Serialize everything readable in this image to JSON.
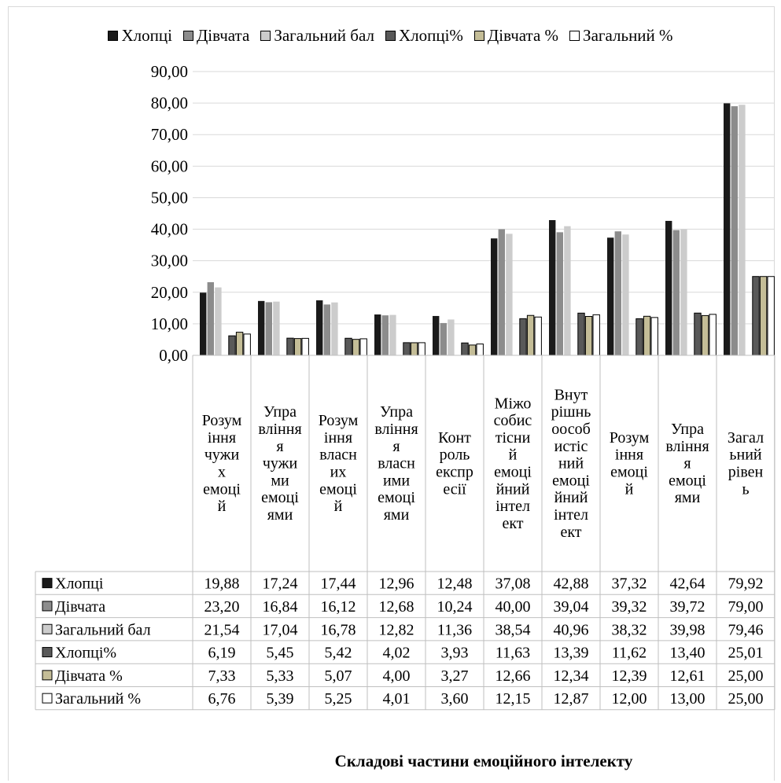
{
  "chart_data": {
    "type": "bar",
    "title": "",
    "xlabel": "Складові частини емоційного інтелекту",
    "ylabel": "",
    "ylim": [
      0,
      90
    ],
    "yticks": [
      "0,00",
      "10,00",
      "20,00",
      "30,00",
      "40,00",
      "50,00",
      "60,00",
      "70,00",
      "80,00",
      "90,00"
    ],
    "grid": true,
    "legend_position": "top",
    "categories": [
      [
        "Розум",
        "іння",
        "чужи",
        "х",
        "емоці",
        "й"
      ],
      [
        "Упра",
        "вління",
        "я",
        "чужи",
        "ми",
        "емоці",
        "ями"
      ],
      [
        "Розум",
        "іння",
        "власн",
        "их",
        "емоці",
        "й"
      ],
      [
        "Упра",
        "вління",
        "я",
        "власн",
        "ими",
        "емоці",
        "ями"
      ],
      [
        "Конт",
        "роль",
        "експр",
        "есії"
      ],
      [
        "Міжо",
        "собис",
        "тісни",
        "й",
        "емоці",
        "йний",
        "інтел",
        "ект"
      ],
      [
        "Внут",
        "рішнь",
        "оособ",
        "истіс",
        "ний",
        "емоці",
        "йний",
        "інтел",
        "ект"
      ],
      [
        "Розум",
        "іння",
        "емоці",
        "й"
      ],
      [
        "Упра",
        "вління",
        "я",
        "емоці",
        "ями"
      ],
      [
        "Загал",
        "ьний",
        "рівен",
        "ь"
      ]
    ],
    "series": [
      {
        "name": "Хлопці",
        "table_label": "Хлопці",
        "color": "#1a1a1a",
        "values": [
          19.88,
          17.24,
          17.44,
          12.96,
          12.48,
          37.08,
          42.88,
          37.32,
          42.64,
          79.92
        ],
        "labels": [
          "19,88",
          "17,24",
          "17,44",
          "12,96",
          "12,48",
          "37,08",
          "42,88",
          "37,32",
          "42,64",
          "79,92"
        ]
      },
      {
        "name": "Дівчата",
        "table_label": "Дівчата",
        "color": "#8c8c8c",
        "values": [
          23.2,
          16.84,
          16.12,
          12.68,
          10.24,
          40.0,
          39.04,
          39.32,
          39.72,
          79.0
        ],
        "labels": [
          "23,20",
          "16,84",
          "16,12",
          "12,68",
          "10,24",
          "40,00",
          "39,04",
          "39,32",
          "39,72",
          "79,00"
        ]
      },
      {
        "name": "Загальний бал",
        "table_label": " Загальний бал",
        "color": "#cccccc",
        "values": [
          21.54,
          17.04,
          16.78,
          12.82,
          11.36,
          38.54,
          40.96,
          38.32,
          39.98,
          79.46
        ],
        "labels": [
          "21,54",
          "17,04",
          "16,78",
          "12,82",
          "11,36",
          "38,54",
          "40,96",
          "38,32",
          "39,98",
          "79,46"
        ]
      },
      {
        "name": "Хлопці%",
        "table_label": "Хлопці%",
        "color": "#595959",
        "values": [
          6.19,
          5.45,
          5.42,
          4.02,
          3.93,
          11.63,
          13.39,
          11.62,
          13.4,
          25.01
        ],
        "labels": [
          "6,19",
          "5,45",
          "5,42",
          "4,02",
          "3,93",
          "11,63",
          "13,39",
          "11,62",
          "13,40",
          "25,01"
        ]
      },
      {
        "name": "Дівчата %",
        "table_label": "Дівчата %",
        "color": "#c4bd97",
        "values": [
          7.33,
          5.33,
          5.07,
          4.0,
          3.27,
          12.66,
          12.34,
          12.39,
          12.61,
          25.0
        ],
        "labels": [
          "7,33",
          "5,33",
          "5,07",
          "4,00",
          "3,27",
          "12,66",
          "12,34",
          "12,39",
          "12,61",
          "25,00"
        ]
      },
      {
        "name": "Загальний %",
        "table_label": "Загальний %",
        "color": "#ffffff",
        "values": [
          6.76,
          5.39,
          5.25,
          4.01,
          3.6,
          12.15,
          12.87,
          12.0,
          13.0,
          25.0
        ],
        "labels": [
          "6,76",
          "5,39",
          "5,25",
          "4,01",
          "3,60",
          "12,15",
          "12,87",
          "12,00",
          "13,00",
          "25,00"
        ]
      }
    ]
  }
}
